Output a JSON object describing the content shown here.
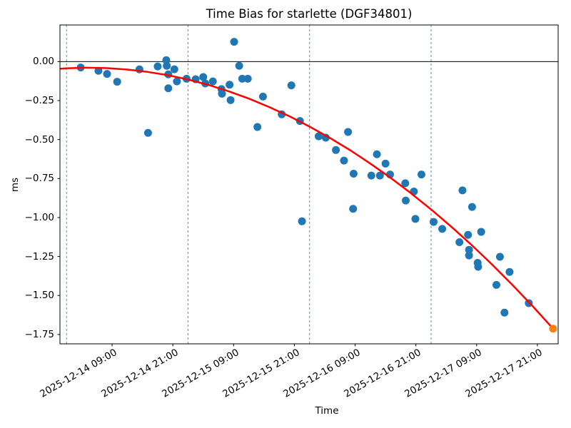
{
  "chart_data": {
    "type": "scatter",
    "title": "Time Bias for starlette (DGF34801)",
    "xlabel": "Time",
    "ylabel": "ms",
    "x_axis": {
      "epoch": "2025-12-14 00:00",
      "units": "hours since epoch",
      "lim": [
        -1.3,
        97.1
      ],
      "ticks": [
        {
          "hours": 9,
          "label": "2025-12-14 09:00"
        },
        {
          "hours": 21,
          "label": "2025-12-14 21:00"
        },
        {
          "hours": 33,
          "label": "2025-12-15 09:00"
        },
        {
          "hours": 45,
          "label": "2025-12-15 21:00"
        },
        {
          "hours": 57,
          "label": "2025-12-16 09:00"
        },
        {
          "hours": 69,
          "label": "2025-12-16 21:00"
        },
        {
          "hours": 81,
          "label": "2025-12-17 09:00"
        },
        {
          "hours": 93,
          "label": "2025-12-17 21:00"
        }
      ]
    },
    "y_axis": {
      "lim": [
        -1.81,
        0.235
      ],
      "ticks": [
        {
          "value": 0.0,
          "label": "0.00"
        },
        {
          "value": -0.25,
          "label": "−0.25"
        },
        {
          "value": -0.5,
          "label": "−0.50"
        },
        {
          "value": -0.75,
          "label": "−0.75"
        },
        {
          "value": -1.0,
          "label": "−1.00"
        },
        {
          "value": -1.25,
          "label": "−1.25"
        },
        {
          "value": -1.5,
          "label": "−1.50"
        },
        {
          "value": -1.75,
          "label": "−1.75"
        }
      ]
    },
    "zero_line_y": 0,
    "day_boundary_lines_hours": [
      0,
      24,
      48,
      72
    ],
    "grid": "off",
    "legend": "none",
    "colors": {
      "scatter": "#1f77b4",
      "highlight": "#ff7f0e",
      "fit": "#ff0000",
      "day_line": "#4f94c8",
      "axis": "#000000"
    },
    "series": [
      {
        "name": "time-bias-observations",
        "color": "#1f77b4",
        "marker_radius": 5.5,
        "points": [
          [
            2.8,
            -0.038
          ],
          [
            6.3,
            -0.059
          ],
          [
            8.0,
            -0.079
          ],
          [
            10.0,
            -0.129
          ],
          [
            14.4,
            -0.05
          ],
          [
            16.1,
            -0.457
          ],
          [
            18.0,
            -0.031
          ],
          [
            19.7,
            0.009
          ],
          [
            19.8,
            -0.027
          ],
          [
            20.1,
            -0.082
          ],
          [
            20.1,
            -0.171
          ],
          [
            21.3,
            -0.049
          ],
          [
            21.8,
            -0.127
          ],
          [
            23.7,
            -0.11
          ],
          [
            25.5,
            -0.113
          ],
          [
            27.0,
            -0.099
          ],
          [
            27.4,
            -0.14
          ],
          [
            28.9,
            -0.127
          ],
          [
            30.6,
            -0.176
          ],
          [
            30.7,
            -0.206
          ],
          [
            32.2,
            -0.148
          ],
          [
            32.4,
            -0.247
          ],
          [
            33.1,
            0.127
          ],
          [
            34.1,
            -0.027
          ],
          [
            34.7,
            -0.11
          ],
          [
            35.8,
            -0.11
          ],
          [
            37.7,
            -0.419
          ],
          [
            38.8,
            -0.224
          ],
          [
            42.5,
            -0.338
          ],
          [
            44.4,
            -0.152
          ],
          [
            46.1,
            -0.381
          ],
          [
            46.5,
            -1.024
          ],
          [
            49.8,
            -0.479
          ],
          [
            51.2,
            -0.488
          ],
          [
            53.2,
            -0.567
          ],
          [
            54.8,
            -0.635
          ],
          [
            55.6,
            -0.451
          ],
          [
            56.6,
            -0.944
          ],
          [
            56.7,
            -0.719
          ],
          [
            60.2,
            -0.731
          ],
          [
            61.3,
            -0.594
          ],
          [
            61.9,
            -0.731
          ],
          [
            63.0,
            -0.654
          ],
          [
            63.9,
            -0.724
          ],
          [
            66.9,
            -0.78
          ],
          [
            67.0,
            -0.891
          ],
          [
            68.6,
            -0.833
          ],
          [
            68.9,
            -1.009
          ],
          [
            70.1,
            -0.724
          ],
          [
            72.5,
            -1.028
          ],
          [
            74.2,
            -1.073
          ],
          [
            77.6,
            -1.158
          ],
          [
            78.2,
            -0.826
          ],
          [
            79.3,
            -1.111
          ],
          [
            79.5,
            -1.207
          ],
          [
            79.5,
            -1.243
          ],
          [
            80.1,
            -0.932
          ],
          [
            81.2,
            -1.291
          ],
          [
            81.3,
            -1.316
          ],
          [
            81.9,
            -1.092
          ],
          [
            84.9,
            -1.432
          ],
          [
            85.6,
            -1.252
          ],
          [
            86.5,
            -1.61
          ],
          [
            87.5,
            -1.349
          ],
          [
            91.3,
            -1.549
          ]
        ]
      },
      {
        "name": "extrapolated-point",
        "color": "#ff7f0e",
        "marker_radius": 5.5,
        "points": [
          [
            96.1,
            -1.713
          ]
        ]
      }
    ],
    "fit_line": {
      "name": "polynomial-fit",
      "color": "#ff0000",
      "width": 2.5,
      "points": [
        [
          -1.3,
          -0.046
        ],
        [
          0,
          -0.043
        ],
        [
          4,
          -0.039
        ],
        [
          8,
          -0.042
        ],
        [
          12,
          -0.051
        ],
        [
          16,
          -0.066
        ],
        [
          20,
          -0.087
        ],
        [
          24,
          -0.115
        ],
        [
          28,
          -0.149
        ],
        [
          32,
          -0.19
        ],
        [
          36,
          -0.237
        ],
        [
          40,
          -0.291
        ],
        [
          44,
          -0.35
        ],
        [
          48,
          -0.417
        ],
        [
          52,
          -0.489
        ],
        [
          56,
          -0.568
        ],
        [
          60,
          -0.654
        ],
        [
          64,
          -0.745
        ],
        [
          68,
          -0.844
        ],
        [
          72,
          -0.948
        ],
        [
          76,
          -1.059
        ],
        [
          80,
          -1.176
        ],
        [
          84,
          -1.3
        ],
        [
          88,
          -1.43
        ],
        [
          92,
          -1.566
        ],
        [
          96.1,
          -1.713
        ]
      ]
    }
  }
}
